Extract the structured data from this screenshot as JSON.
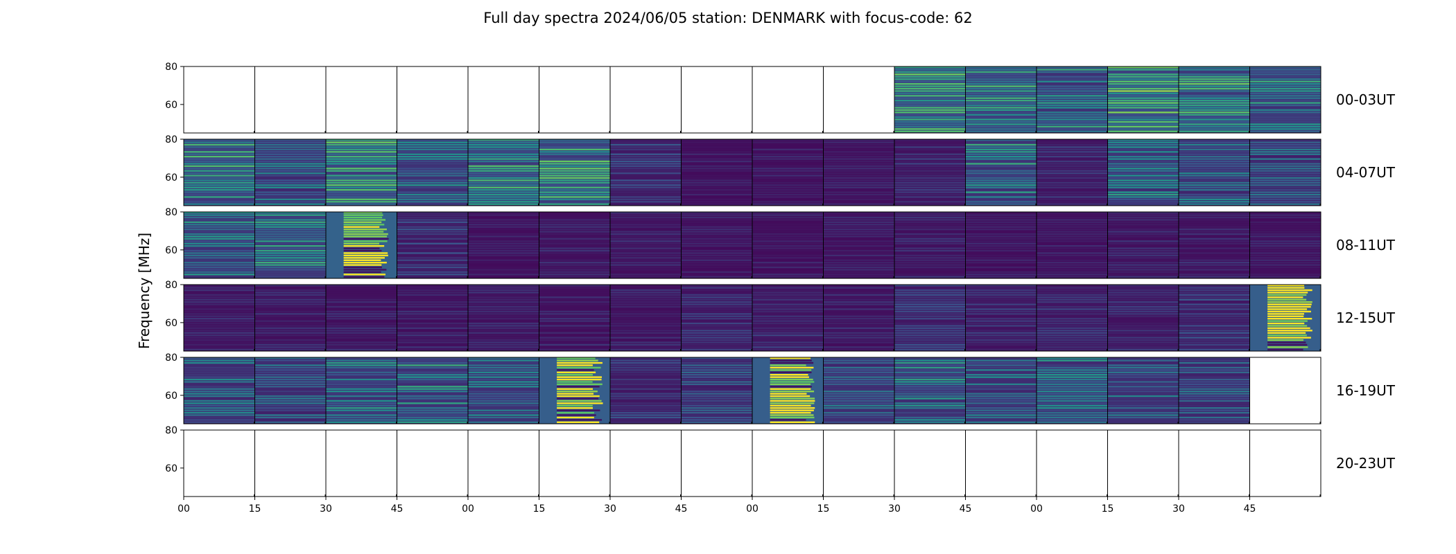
{
  "chart_data": {
    "type": "heatmap",
    "title": "Full day spectra 2024/06/05 station: DENMARK with focus-code: 62",
    "ylabel": "Frequency [MHz]",
    "xlabel": "",
    "y_ticks": [
      "80",
      "60"
    ],
    "ylim": [
      45,
      80
    ],
    "x_ticks": [
      "00",
      "15",
      "30",
      "45",
      "00",
      "15",
      "30",
      "45",
      "00",
      "15",
      "30",
      "45",
      "00",
      "15",
      "30",
      "45"
    ],
    "colormap": [
      "#440154",
      "#3b528b",
      "#21918c",
      "#5ec962",
      "#fde725"
    ],
    "grid": false,
    "rows": [
      {
        "label": "00-03UT",
        "cells": [
          0,
          0,
          0,
          0,
          0,
          0,
          0,
          0,
          0,
          0,
          0.55,
          0.5,
          0.45,
          0.6,
          0.55,
          0.45
        ]
      },
      {
        "label": "04-07UT",
        "cells": [
          0.5,
          0.35,
          0.55,
          0.4,
          0.5,
          0.55,
          0.2,
          0.1,
          0.1,
          0.1,
          0.15,
          0.45,
          0.15,
          0.4,
          0.35,
          0.3
        ]
      },
      {
        "label": "08-11UT",
        "cells": [
          0.4,
          0.45,
          0.9,
          0.2,
          0.1,
          0.12,
          0.12,
          0.1,
          0.1,
          0.1,
          0.12,
          0.1,
          0.1,
          0.12,
          0.12,
          0.1
        ]
      },
      {
        "label": "12-15UT",
        "cells": [
          0.12,
          0.12,
          0.12,
          0.12,
          0.12,
          0.12,
          0.12,
          0.15,
          0.15,
          0.12,
          0.2,
          0.15,
          0.15,
          0.15,
          0.2,
          0.85
        ]
      },
      {
        "label": "16-19UT",
        "cells": [
          0.35,
          0.3,
          0.4,
          0.45,
          0.35,
          0.85,
          0.2,
          0.25,
          0.85,
          0.35,
          0.4,
          0.35,
          0.4,
          0.35,
          0.3,
          0
        ]
      },
      {
        "label": "20-23UT",
        "cells": [
          0,
          0,
          0,
          0,
          0,
          0,
          0,
          0,
          0,
          0,
          0,
          0,
          0,
          0,
          0,
          0
        ]
      }
    ]
  }
}
